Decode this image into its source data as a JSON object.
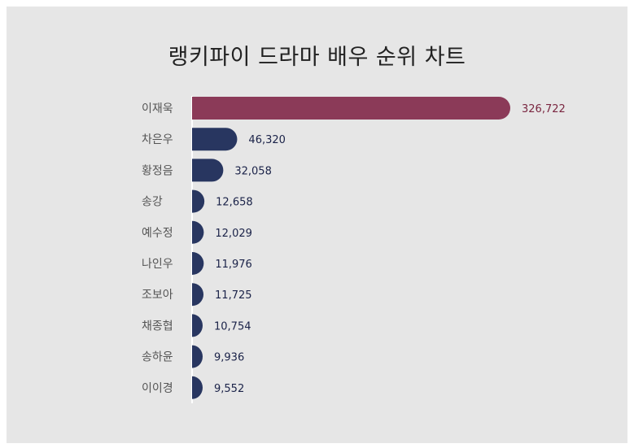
{
  "colors": {
    "highlight": "#8b3a58",
    "bar": "#283660",
    "highlight_label": "#7a2640",
    "bar_label": "#1a2248",
    "background": "#e6e6e6"
  },
  "chart_data": {
    "type": "bar",
    "orientation": "horizontal",
    "title": "랭키파이 드라마 배우 순위 차트",
    "categories": [
      "이재욱",
      "차은우",
      "황정음",
      "송강",
      "예수정",
      "나인우",
      "조보아",
      "채종협",
      "송하윤",
      "이이경"
    ],
    "values": [
      326722,
      46320,
      32058,
      12658,
      12029,
      11976,
      11725,
      10754,
      9936,
      9552
    ],
    "value_labels": [
      "326,722",
      "46,320",
      "32,058",
      "12,658",
      "12,029",
      "11,976",
      "11,725",
      "10,754",
      "9,936",
      "9,552"
    ],
    "highlight_index": 0,
    "xlabel": "",
    "ylabel": "",
    "grid": false,
    "legend": "none"
  }
}
